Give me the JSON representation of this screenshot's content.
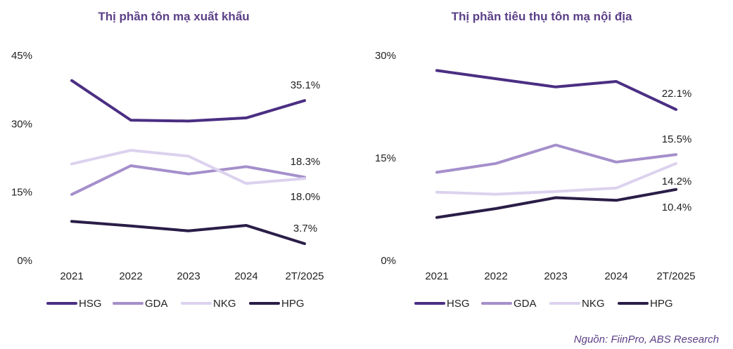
{
  "source": "Nguồn: FiinPro, ABS Research",
  "chart_data": [
    {
      "type": "line",
      "title": "Thị phần tôn mạ xuất khẩu",
      "categories": [
        "2021",
        "2022",
        "2023",
        "2024",
        "2T/2025"
      ],
      "yticks": [
        "0%",
        "15%",
        "30%",
        "45%"
      ],
      "ylim": [
        0,
        45
      ],
      "grid": false,
      "legend_position": "bottom",
      "series": [
        {
          "name": "HSG",
          "color": "#4b2e83",
          "values": [
            39.5,
            30.8,
            30.6,
            31.3,
            35.1
          ],
          "end_label": "35.1%"
        },
        {
          "name": "GDA",
          "color": "#a58fcb",
          "values": [
            14.5,
            20.8,
            19.0,
            20.6,
            18.3
          ],
          "end_label": "18.3%"
        },
        {
          "name": "NKG",
          "color": "#dcd2ef",
          "values": [
            21.2,
            24.2,
            22.9,
            16.9,
            18.0
          ],
          "end_label": "18.0%"
        },
        {
          "name": "HPG",
          "color": "#2a1d47",
          "values": [
            8.6,
            7.6,
            6.5,
            7.7,
            3.7
          ],
          "end_label": "3.7%"
        }
      ]
    },
    {
      "type": "line",
      "title": "Thị phần tiêu thụ tôn mạ nội địa",
      "categories": [
        "2021",
        "2022",
        "2023",
        "2024",
        "2T/2025"
      ],
      "yticks": [
        "0%",
        "15%",
        "30%"
      ],
      "ylim": [
        0,
        30
      ],
      "grid": false,
      "legend_position": "bottom",
      "series": [
        {
          "name": "HSG",
          "color": "#4b2e83",
          "values": [
            27.8,
            26.6,
            25.4,
            26.2,
            22.1
          ],
          "end_label": "22.1%"
        },
        {
          "name": "GDA",
          "color": "#a58fcb",
          "values": [
            12.9,
            14.2,
            16.9,
            14.4,
            15.5
          ],
          "end_label": "15.5%"
        },
        {
          "name": "NKG",
          "color": "#dcd2ef",
          "values": [
            10.0,
            9.7,
            10.1,
            10.6,
            14.2
          ],
          "end_label": "14.2%"
        },
        {
          "name": "HPG",
          "color": "#2a1d47",
          "values": [
            6.3,
            7.6,
            9.2,
            8.8,
            10.4
          ],
          "end_label": "10.4%"
        }
      ]
    }
  ]
}
